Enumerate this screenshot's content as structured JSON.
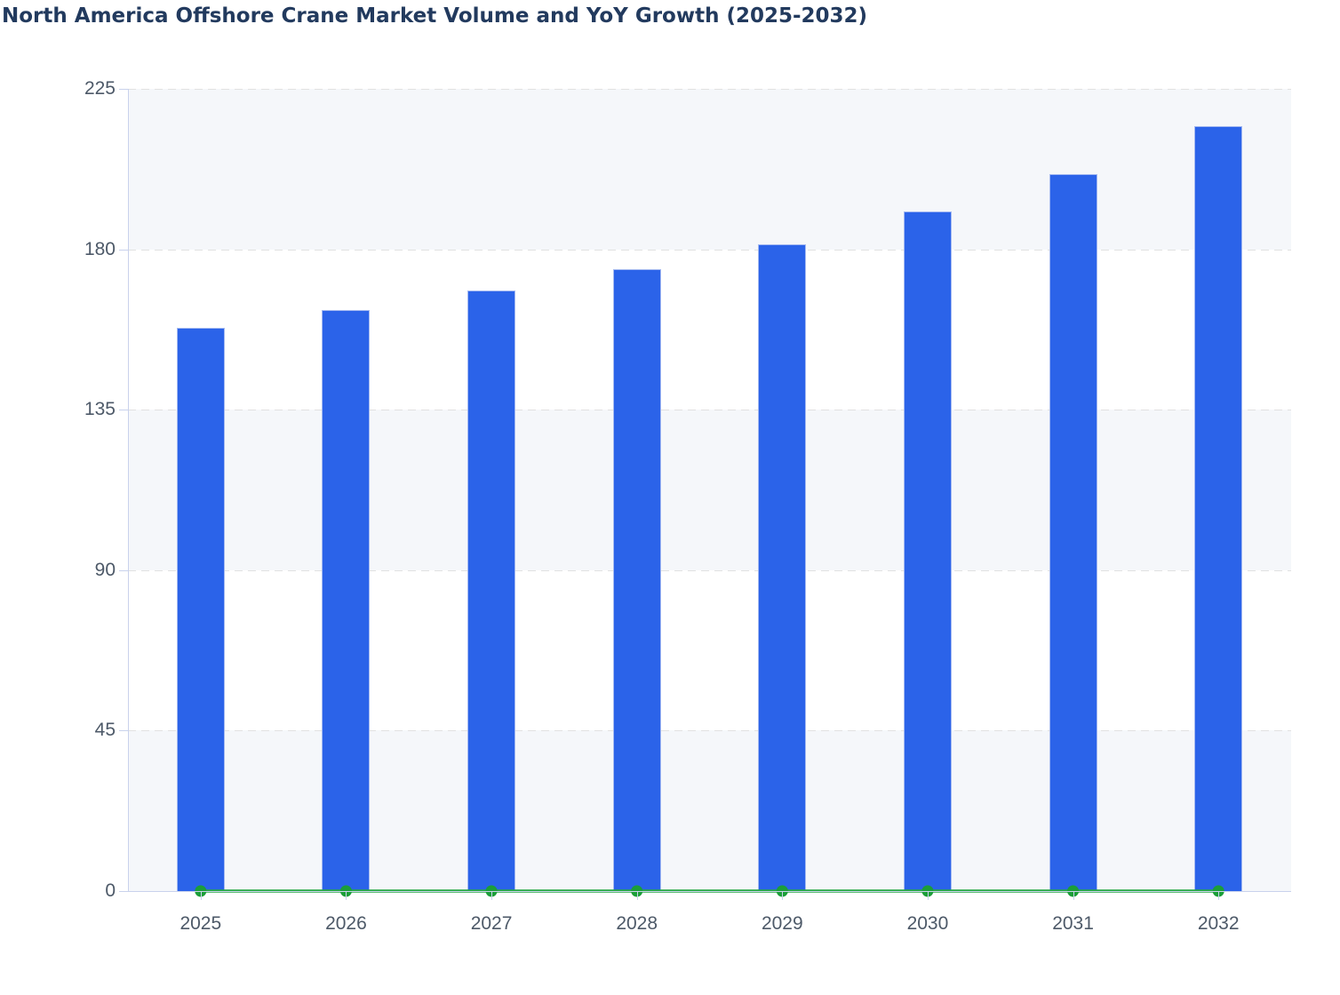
{
  "chart_data": {
    "type": "combo-bar-line",
    "title": "North America Offshore Crane Market Volume and YoY Growth (2025-2032)",
    "categories": [
      "2025",
      "2026",
      "2027",
      "2028",
      "2029",
      "2030",
      "2031",
      "2032"
    ],
    "series": [
      {
        "name": "Market Volume",
        "type": "bar",
        "color": "#2b63e9",
        "values": [
          158,
          163,
          168.5,
          174.5,
          181.5,
          190.5,
          201,
          214.5
        ]
      },
      {
        "name": "YoY Growth",
        "type": "line",
        "color": "#26a844",
        "marker_color": "#1b9e38",
        "values": [
          0,
          0,
          0,
          0,
          0,
          0,
          0,
          0
        ]
      }
    ],
    "xlabel": "",
    "ylabel": "",
    "ylim": [
      0,
      225
    ],
    "yticks": [
      0,
      45,
      90,
      135,
      180,
      225
    ],
    "grid": "horizontal-dashed",
    "plot_bands": "alternating-light",
    "legend_position": "none",
    "colors": {
      "title": "#223a5e",
      "axis_label": "#4d5968",
      "axis_line": "#c9d2ec",
      "gridline": "#e1e1e1",
      "band": "#f5f7fa",
      "bar_border": "#a4b9f1"
    }
  }
}
